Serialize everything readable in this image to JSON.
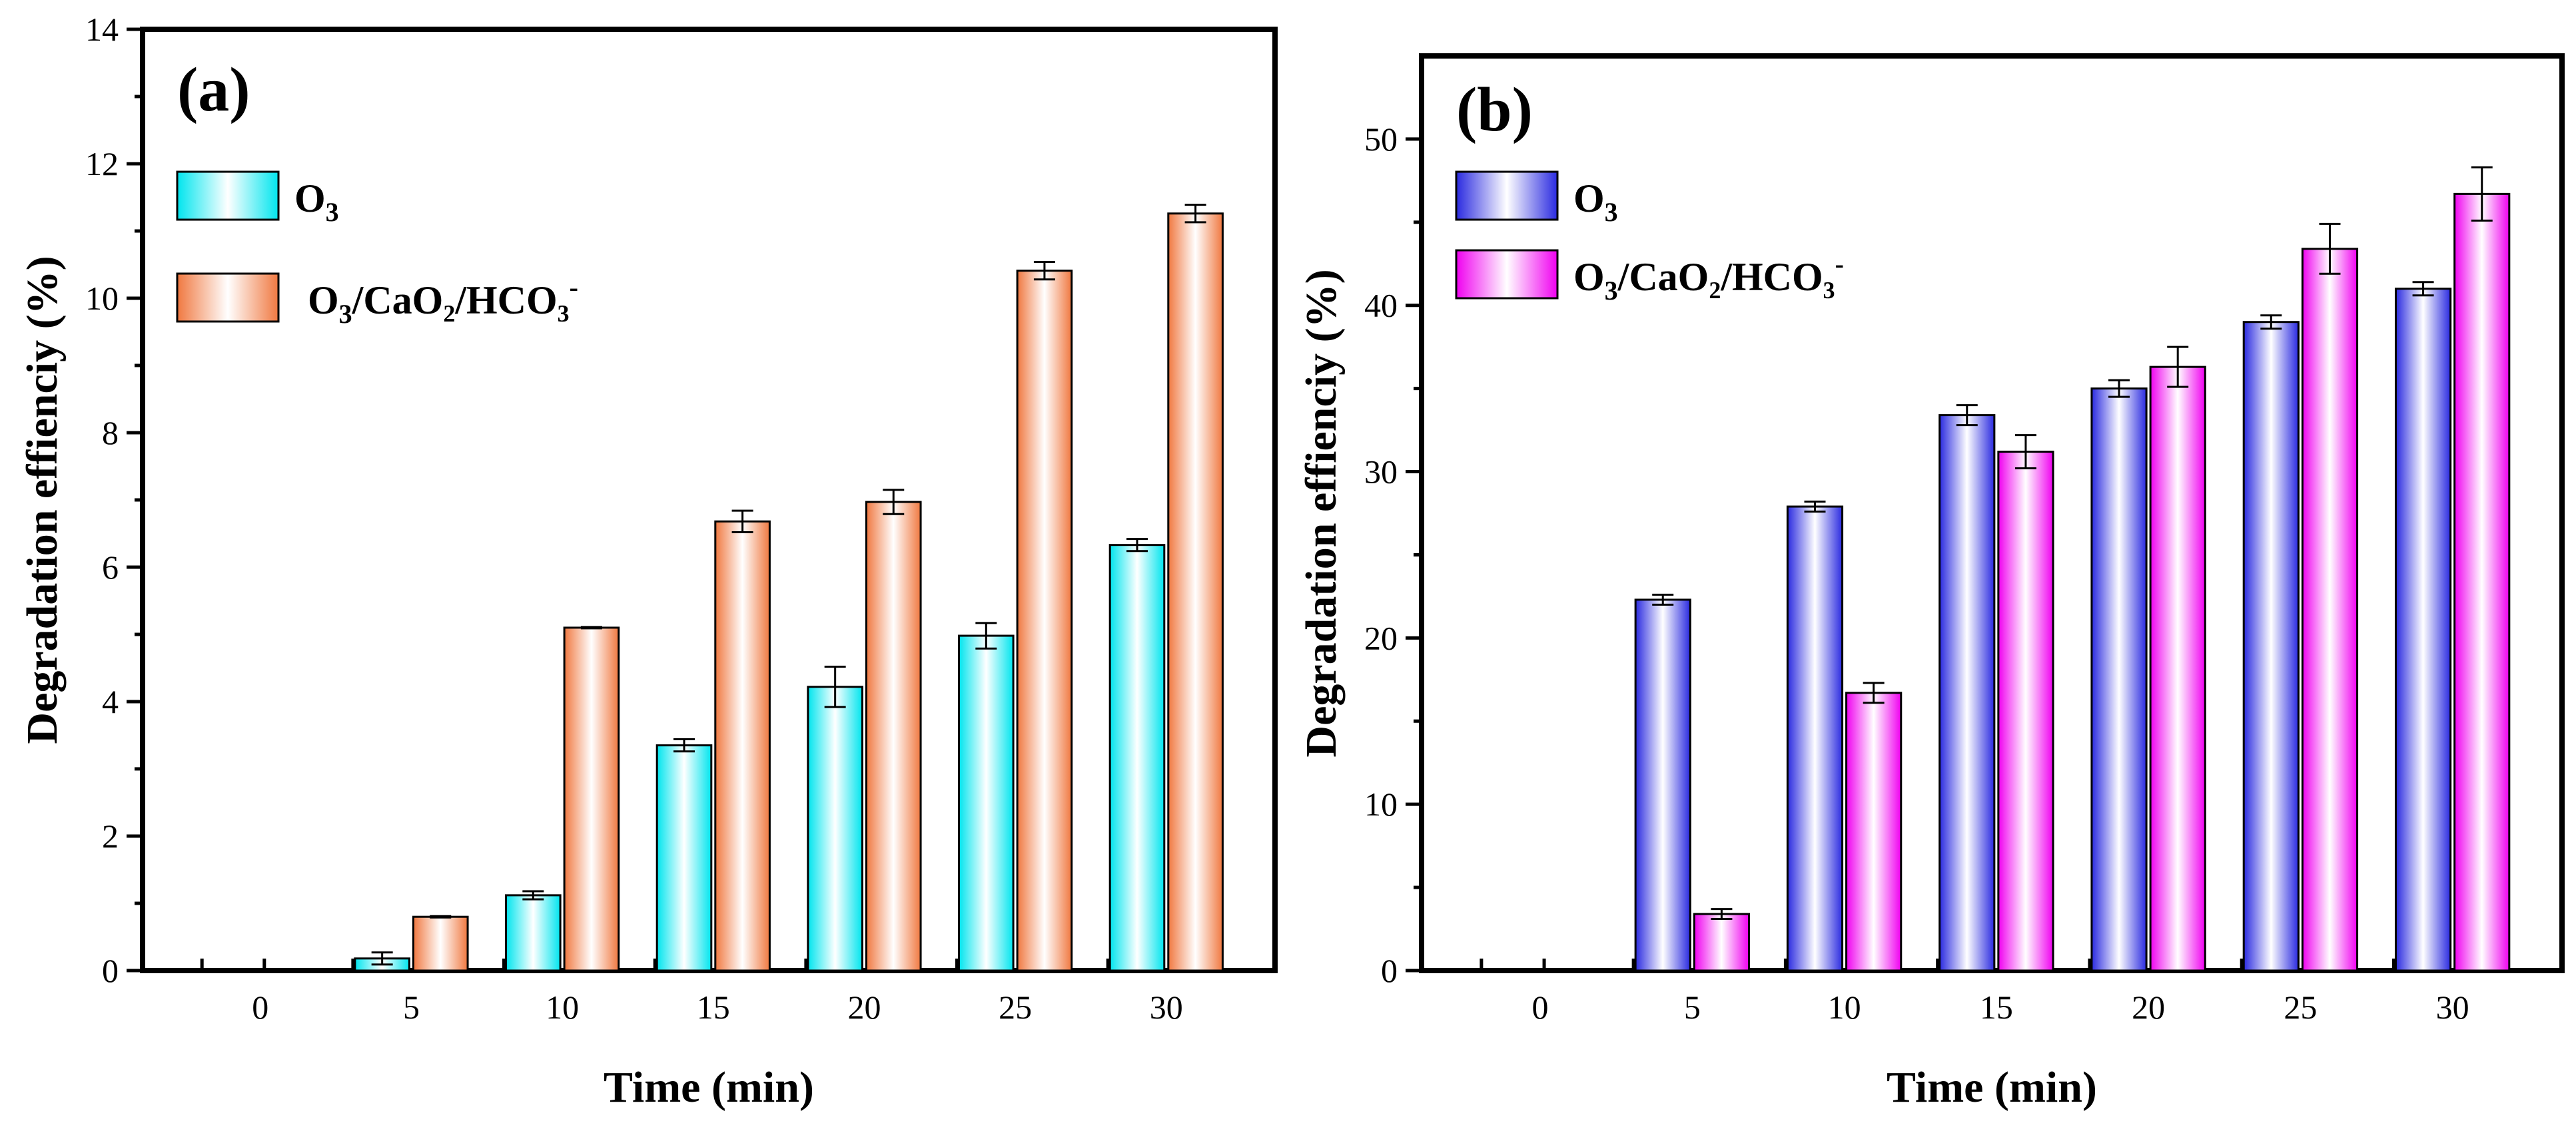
{
  "figure": {
    "panels": [
      {
        "label": "(a)",
        "xlabel": "Time (min)",
        "ylabel": "Degradation effienciy (%)"
      },
      {
        "label": "(b)",
        "xlabel": "Time (min)",
        "ylabel": "Degradation effienciy (%)"
      }
    ]
  },
  "chart_data": [
    {
      "type": "bar",
      "panel_label": "(a)",
      "title": "",
      "xlabel": "Time (min)",
      "ylabel": "Degradation effienciy (%)",
      "categories": [
        "0",
        "5",
        "10",
        "15",
        "20",
        "25",
        "30"
      ],
      "ylim": [
        0,
        14
      ],
      "yticks": [
        0,
        2,
        4,
        6,
        8,
        10,
        12,
        14
      ],
      "grid": false,
      "legend_position": "top-left",
      "series": [
        {
          "name": "O3",
          "legend": {
            "base": "O",
            "sub": "3",
            "tail": "",
            "sup": ""
          },
          "values": [
            0,
            0.18,
            1.12,
            3.35,
            4.22,
            4.98,
            6.33
          ],
          "errors": [
            0,
            0.09,
            0.06,
            0.09,
            0.3,
            0.19,
            0.09
          ],
          "color": "#00e5ee"
        },
        {
          "name": "O3/CaO2/HCO3-",
          "legend": {
            "base": "O",
            "sub": "3",
            "tail": "/CaO₂/HCO₃",
            "sup": "-"
          },
          "values": [
            0,
            0.8,
            5.1,
            6.68,
            6.97,
            10.41,
            11.26
          ],
          "errors": [
            0,
            0.01,
            0.01,
            0.16,
            0.18,
            0.13,
            0.13
          ],
          "color": "#f07840"
        }
      ]
    },
    {
      "type": "bar",
      "panel_label": "(b)",
      "title": "",
      "xlabel": "Time (min)",
      "ylabel": "Degradation effienciy (%)",
      "categories": [
        "0",
        "5",
        "10",
        "15",
        "20",
        "25",
        "30"
      ],
      "ylim": [
        0,
        55
      ],
      "yticks": [
        0,
        10,
        20,
        30,
        40,
        50
      ],
      "grid": false,
      "legend_position": "top-left",
      "series": [
        {
          "name": "O3",
          "legend": {
            "base": "O",
            "sub": "3",
            "tail": "",
            "sup": ""
          },
          "values": [
            0,
            22.3,
            27.9,
            33.4,
            35.0,
            39.0,
            41.0
          ],
          "errors": [
            0,
            0.3,
            0.3,
            0.6,
            0.5,
            0.4,
            0.4
          ],
          "color": "#2a2ae0"
        },
        {
          "name": "O3/CaO2/HCO3-",
          "legend": {
            "base": "O",
            "sub": "3",
            "tail": "/CaO₂/HCO₃",
            "sup": "-"
          },
          "values": [
            0,
            3.4,
            16.7,
            31.2,
            36.3,
            43.4,
            46.7
          ],
          "errors": [
            0,
            0.3,
            0.6,
            1.0,
            1.2,
            1.5,
            1.6
          ],
          "color": "#f000f0"
        }
      ]
    }
  ]
}
